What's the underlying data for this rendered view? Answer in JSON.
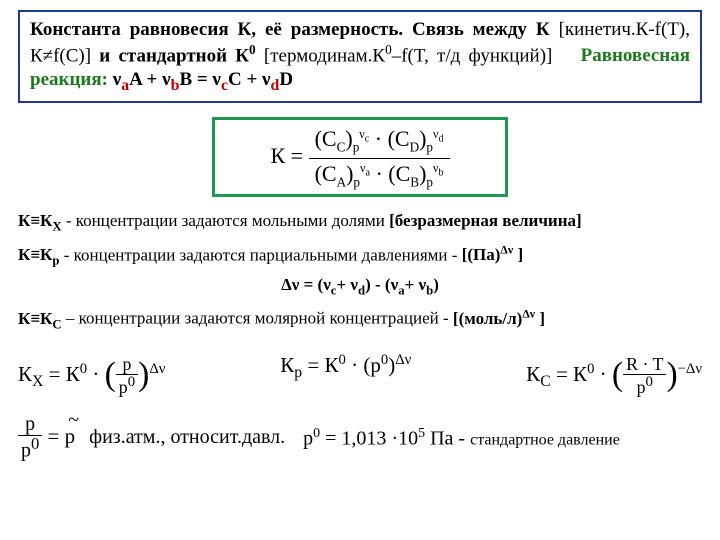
{
  "title": {
    "part1": "Константа равновесия К, её размерность. Связь между К",
    "brk1a": "[кинетич.К-f(T), К≠f(C)]",
    "mid": " и стандартной  К",
    "sup0": "0",
    "brk1b": " [термодинам.К",
    "sup0b": "0",
    "brk1c": "–f(T, т/д функций)]",
    "eq_label": "Равновесная реакция:",
    "reaction_html": "ν<sub class='coef'>a</sub>A + ν<sub class='coef'>b</sub>B = ν<sub class='coef'>c</sub>C + ν<sub class='coef'>d</sub>D"
  },
  "main_formula": {
    "lhs": "К =",
    "num1_base": "(C",
    "num1_sub": "C",
    "num1_close": ")",
    "num1_psub": "р",
    "num1_pow": "ν",
    "num1_powsub": "c",
    "num2_base": "(C",
    "num2_sub": "D",
    "num2_close": ")",
    "num2_psub": "р",
    "num2_pow": "ν",
    "num2_powsub": "d",
    "den1_base": "(C",
    "den1_sub": "A",
    "den1_close": ")",
    "den1_psub": "р",
    "den1_pow": "ν",
    "den1_powsub": "a",
    "den2_base": "(C",
    "den2_sub": "B",
    "den2_close": ")",
    "den2_psub": "р",
    "den2_pow": "ν",
    "den2_powsub": "b",
    "dot": "·"
  },
  "kx": {
    "label": "К≡К",
    "sub": "X",
    "text": " - концентрации задаются мольными долями ",
    "brack": "[безразмерная величина]"
  },
  "kp": {
    "label": "К≡К",
    "sub": "p",
    "text": " - концентрации задаются парциальными давлениями  - ",
    "brack": "[(Па)",
    "brack_pow": "Δν",
    "brack_end": " ]"
  },
  "dnu": "Δν = (ν",
  "dnu_c": "c",
  "dnu_mid": "+ ν",
  "dnu_d": "d",
  "dnu_mid2": ") - (ν",
  "dnu_a": "a",
  "dnu_mid3": "+ ν",
  "dnu_b": "b",
  "dnu_end": ")",
  "kc": {
    "label": "К≡К",
    "sub": "C",
    "text": " – концентрации задаются молярной концентрацией - ",
    "brack": "[(моль/л)",
    "brack_pow": "Δν",
    "brack_end": "  ]"
  },
  "triple": {
    "kx": {
      "lhs": "К",
      "lhs_sub": "X",
      "eq": " = К",
      "ksup": "0",
      "dot": " ·",
      "frac_top": "p",
      "frac_bot": "p",
      "frac_bot_sup": "0",
      "pow": "Δν"
    },
    "kp": {
      "lhs": "К",
      "lhs_sub": "p",
      "eq": " = К",
      "ksup": "0",
      "dot": " · (p",
      "psup": "0",
      "close": ")",
      "pow": "Δν"
    },
    "kc": {
      "lhs": "К",
      "lhs_sub": "C",
      "eq": " = К",
      "ksup": "0",
      "dot": " ·",
      "frac_top": "R · T",
      "frac_bot": "p",
      "frac_bot_sup": "0",
      "pow": "−Δν"
    }
  },
  "bottom": {
    "frac_top": "p",
    "frac_bot": "p",
    "frac_bot_sup": "0",
    "eq": " = ",
    "ptilde": "p",
    "txt": "физ.атм., относит.давл.",
    "p0": "p",
    "p0sup": "0",
    "p0eq": " = 1,013 ",
    "ten": "·10",
    "tensup": "5",
    "unit": " Па - ",
    "desc": "стандартное давление"
  },
  "colors": {
    "border_blue": "#1f3a93",
    "border_green": "#1a9a4a",
    "reaction_green": "#1a7a1a",
    "coef_red": "#c00000"
  }
}
